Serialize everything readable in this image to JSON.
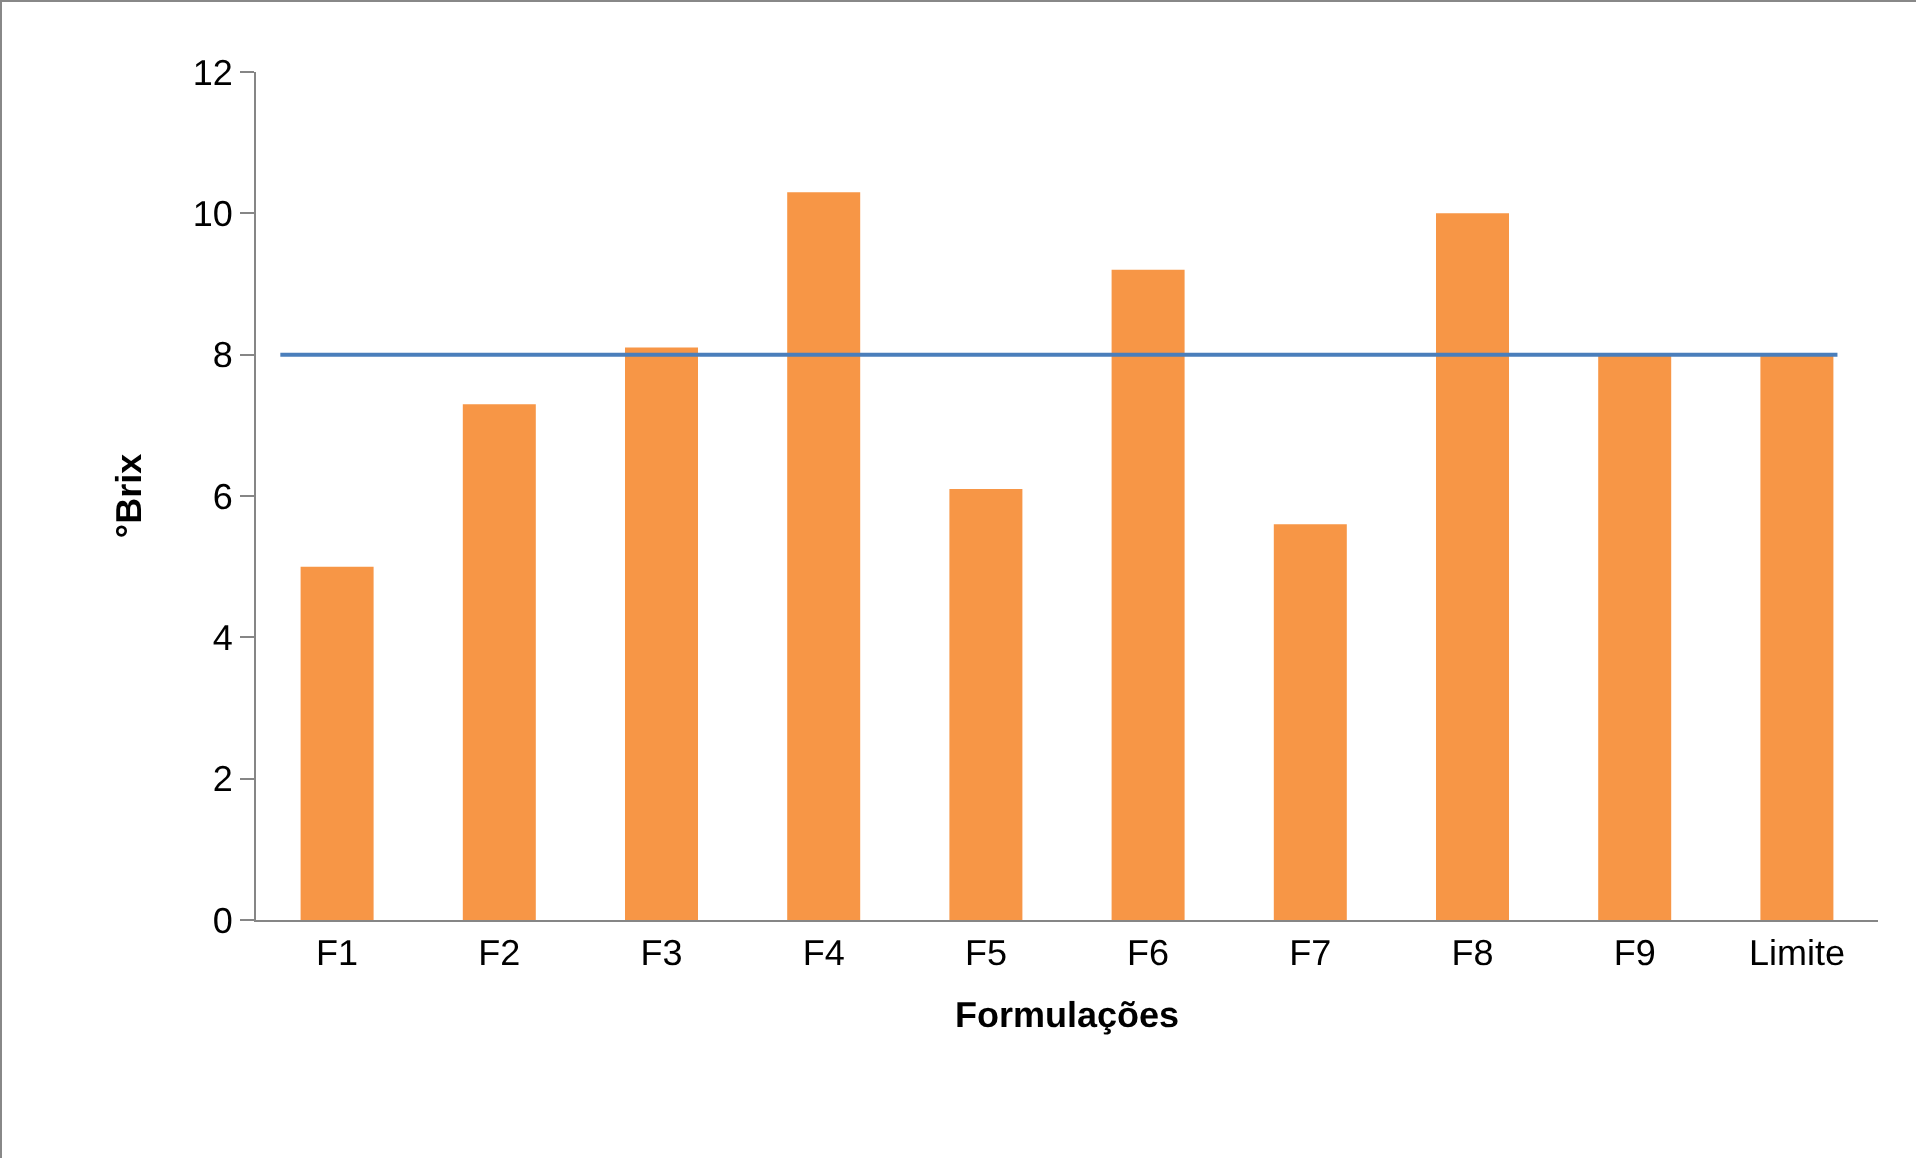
{
  "chart_data": {
    "type": "bar",
    "xlabel": "Formulações",
    "ylabel": "°Brix",
    "categories": [
      "F1",
      "F2",
      "F3",
      "F4",
      "F5",
      "F6",
      "F7",
      "F8",
      "F9",
      "Limite"
    ],
    "values": [
      5,
      7.3,
      8.1,
      10.3,
      6.1,
      9.2,
      5.6,
      10,
      8,
      8
    ],
    "color": "#f79646",
    "ylim": [
      0,
      12
    ],
    "yticks": [
      0,
      2,
      4,
      6,
      8,
      10,
      12
    ],
    "grid": false,
    "ref_lines": [
      {
        "axis": "y",
        "value": 8,
        "color": "#4a7ebb",
        "line_style": "solid"
      }
    ]
  }
}
